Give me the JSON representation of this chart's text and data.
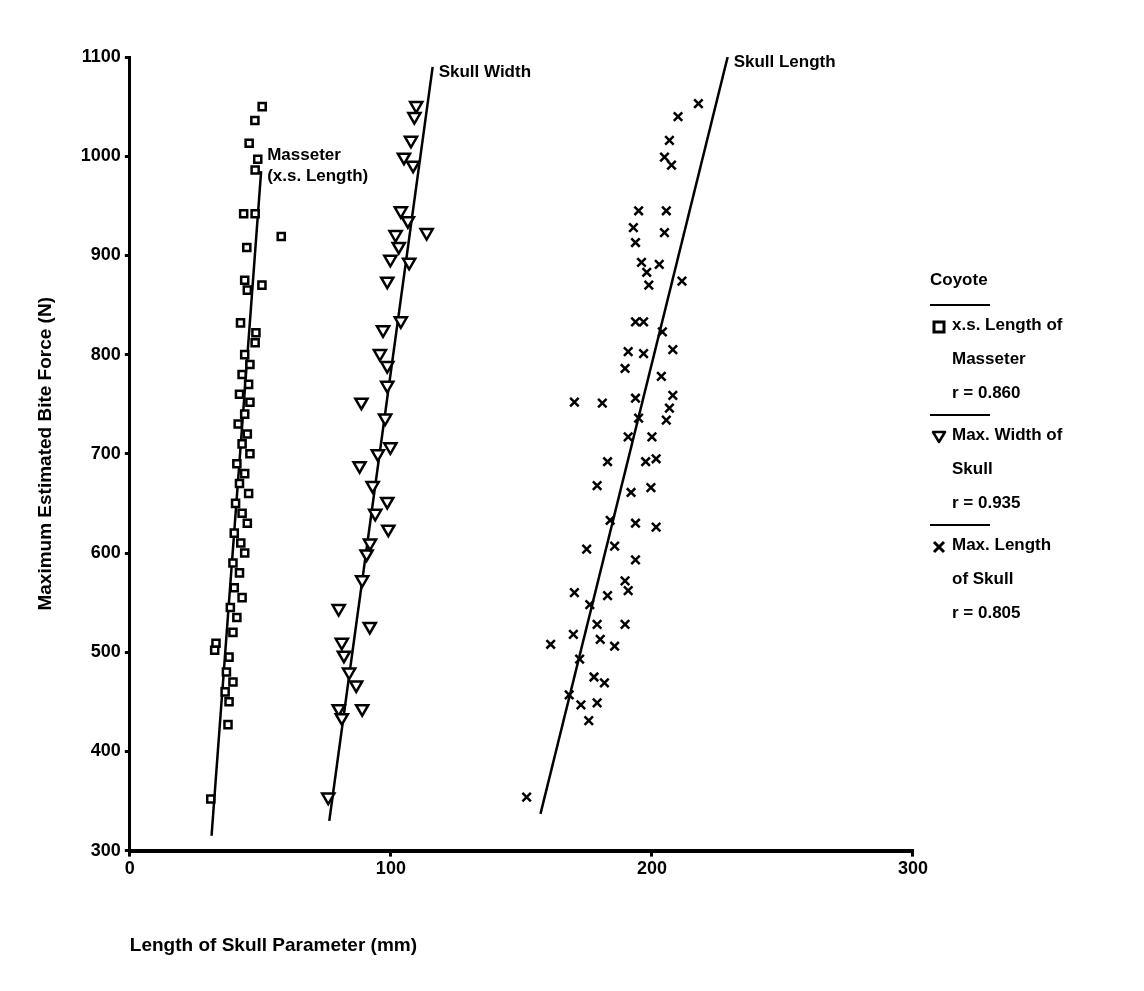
{
  "chart_data": {
    "type": "scatter",
    "xlabel": "Length of Skull Parameter (mm)",
    "ylabel": "Maximum Estimated Bite Force (N)",
    "legend_title": "Coyote",
    "legend": "right",
    "grid": false,
    "xlim": [
      0,
      300
    ],
    "xticks": [
      0,
      100,
      200,
      300
    ],
    "ylim": [
      300,
      1100
    ],
    "yticks": [
      300,
      400,
      500,
      600,
      700,
      800,
      900,
      1000,
      1100
    ],
    "annotations": [
      "r = 0.860",
      "r = 0.935",
      "r = 0.805"
    ],
    "series": [
      {
        "name": "x.s. Length of Masseter",
        "marker": "square",
        "color": "#000000",
        "x": [
          50.7,
          47.9,
          45.7,
          49,
          48,
          43.6,
          48,
          58,
          44.8,
          44,
          50.6,
          45,
          42.4,
          48.3,
          48,
          44,
          46,
          43,
          45.5,
          42,
          46,
          44,
          41.5,
          45,
          43,
          46,
          41,
          44,
          42,
          45.5,
          40.5,
          43,
          45,
          40,
          42.5,
          44,
          39.5,
          42,
          40,
          43,
          38.5,
          41,
          39.5,
          33,
          32.5,
          38,
          37,
          39.5,
          36.5,
          38,
          37.6,
          31
        ],
        "values": [
          1050,
          1036,
          1013,
          997,
          986,
          942,
          942,
          919,
          908,
          875,
          870,
          865,
          832,
          822,
          812,
          800,
          790,
          780,
          770,
          760,
          752,
          740,
          730,
          720,
          710,
          700,
          690,
          680,
          670,
          660,
          650,
          640,
          630,
          620,
          610,
          600,
          590,
          580,
          565,
          555,
          545,
          535,
          520,
          509,
          502,
          495,
          480,
          470,
          460,
          450,
          427,
          352
        ]
      },
      {
        "name": "Max. Width of Skull",
        "marker": "triangle",
        "color": "#000000",
        "x": [
          109.7,
          109,
          107.7,
          105,
          108.5,
          103.8,
          106.5,
          113.7,
          101.8,
          103,
          99.8,
          107,
          98.6,
          103.8,
          97,
          95.8,
          98.6,
          88.7,
          98.6,
          97.8,
          99.8,
          88,
          95,
          93,
          98.6,
          99,
          94,
          90.7,
          92,
          89,
          80,
          91.9,
          81.2,
          82,
          86.7,
          84,
          80,
          89,
          81.2,
          76
        ],
        "values": [
          1051,
          1040,
          1016,
          999,
          991,
          945,
          935,
          923,
          921,
          909,
          896,
          893,
          874,
          834,
          825,
          801,
          789,
          752,
          769,
          736,
          707,
          688,
          700,
          668,
          652,
          624,
          640,
          599,
          610,
          573,
          544,
          526,
          510,
          497,
          467,
          480,
          443,
          443,
          434,
          354
        ]
      },
      {
        "name": "Max. Length of Skull",
        "marker": "cross",
        "color": "#000000",
        "x": [
          217.8,
          210,
          206.7,
          204.8,
          207.5,
          194.9,
          205.5,
          192.9,
          204.8,
          193.7,
          196,
          202.8,
          198,
          198.8,
          211.5,
          193.7,
          196.8,
          204,
          190.9,
          208,
          196.8,
          189.7,
          203.6,
          170.3,
          181,
          193.7,
          208,
          206.7,
          205.5,
          194.9,
          190.9,
          200,
          201.6,
          183,
          197.6,
          179,
          192,
          199.6,
          184,
          193.7,
          201.6,
          175,
          185.7,
          193.7,
          189.7,
          190.9,
          170.3,
          176.2,
          183,
          179,
          189.7,
          169.9,
          161.2,
          180.2,
          185.7,
          172.3,
          177.8,
          181.8,
          168.3,
          172.8,
          179,
          175.8,
          152
        ],
        "values": [
          1053,
          1040,
          1016,
          999,
          991,
          945,
          945,
          928,
          923,
          913,
          893,
          891,
          883,
          870,
          874,
          833,
          833,
          823,
          803,
          805,
          801,
          786,
          778,
          752,
          751,
          756,
          759,
          746,
          734,
          736,
          717,
          717,
          695,
          692,
          692,
          668,
          661,
          666,
          633,
          630,
          626,
          604,
          607,
          593,
          572,
          562,
          560,
          548,
          557,
          528,
          528,
          518,
          508,
          513,
          506,
          493,
          475,
          469,
          457,
          447,
          449,
          431,
          354
        ]
      },
      {
        "name": "Masseter (x.s. Length)",
        "type": "line",
        "marker": "none",
        "color": "#000000",
        "x": [
          31.3,
          50.3
        ],
        "values": [
          315,
          985
        ]
      },
      {
        "name": "Skull Width",
        "type": "line",
        "marker": "none",
        "color": "#000000",
        "x": [
          76.4,
          116
        ],
        "values": [
          330,
          1090
        ]
      },
      {
        "name": "Skull Length",
        "type": "line",
        "marker": "none",
        "color": "#000000",
        "x": [
          157.3,
          229
        ],
        "values": [
          337,
          1100
        ]
      }
    ]
  }
}
